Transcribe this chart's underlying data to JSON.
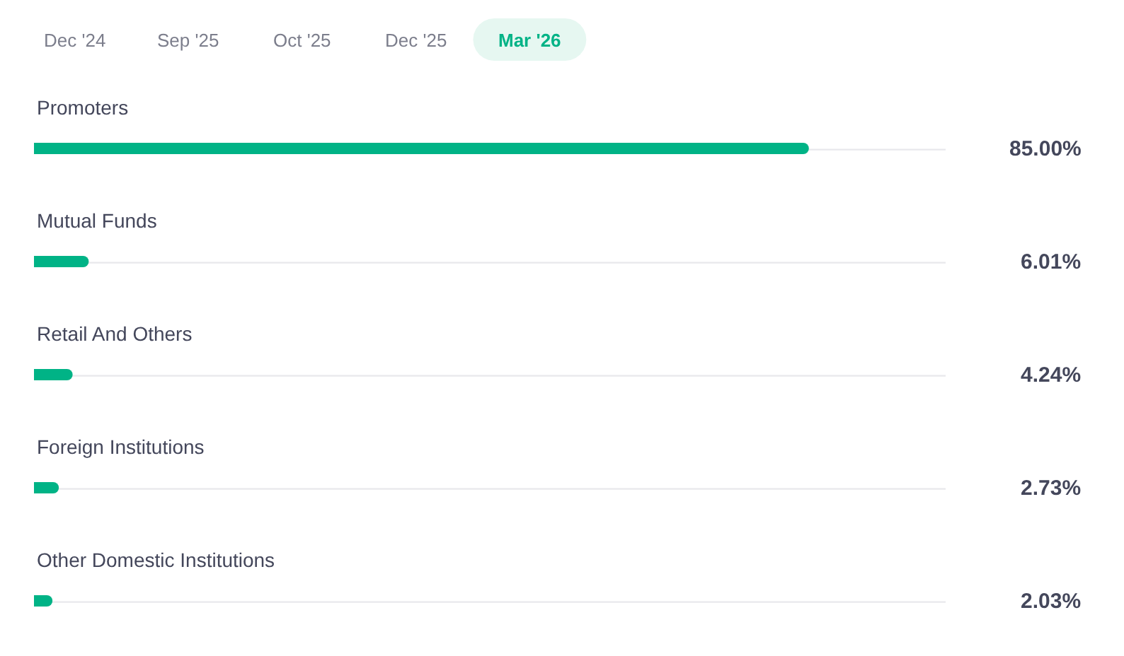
{
  "chart_data": {
    "type": "bar",
    "orientation": "horizontal",
    "categories": [
      "Promoters",
      "Mutual Funds",
      "Retail And Others",
      "Foreign Institutions",
      "Other Domestic Institutions"
    ],
    "values": [
      85.0,
      6.01,
      4.24,
      2.73,
      2.03
    ],
    "value_labels": [
      "85.00%",
      "6.01%",
      "4.24%",
      "2.73%",
      "2.03%"
    ],
    "color": "#00b386",
    "xlim": [
      0,
      100
    ],
    "annotations": [
      "Dec '24",
      "Sep '25",
      "Oct '25",
      "Dec '25",
      "Mar '26"
    ]
  }
}
